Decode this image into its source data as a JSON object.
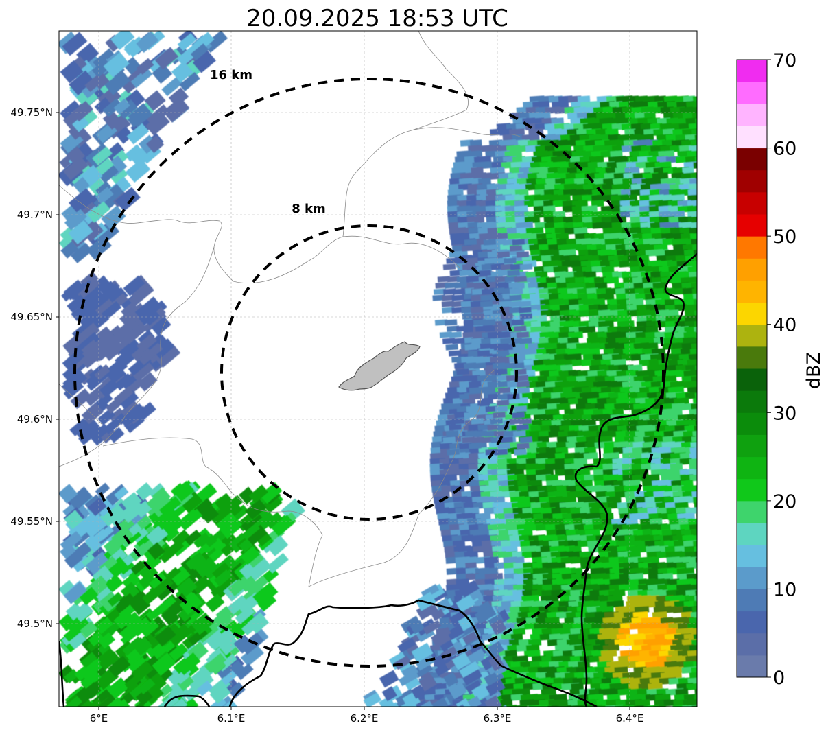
{
  "title": "20.09.2025 18:53 UTC",
  "map": {
    "x_ticks": [
      "6°E",
      "6.1°E",
      "6.2°E",
      "6.3°E",
      "6.4°E"
    ],
    "y_ticks": [
      "49.75°N",
      "49.7°N",
      "49.65°N",
      "49.6°N",
      "49.55°N",
      "49.5°N"
    ],
    "rings": [
      {
        "label": "8 km",
        "radius_km": 8
      },
      {
        "label": "16 km",
        "radius_km": 16
      }
    ],
    "center": {
      "lon": 6.2,
      "lat": 49.623
    }
  },
  "colorbar": {
    "label": "dBZ",
    "min": 0,
    "max": 70,
    "ticks": [
      "0",
      "10",
      "20",
      "30",
      "40",
      "50",
      "60",
      "70"
    ],
    "colors": [
      "#6a7bab",
      "#5b6ea8",
      "#4a66ad",
      "#4e7bb5",
      "#5b9bcb",
      "#66bfe0",
      "#5ed5c0",
      "#3ed46c",
      "#10c81a",
      "#0fb412",
      "#0fa10f",
      "#0b8c0b",
      "#0b7a0b",
      "#0a620a",
      "#4a7a0c",
      "#adb30f",
      "#fcd600",
      "#ffb400",
      "#ffa000",
      "#ff7800",
      "#e60000",
      "#c80000",
      "#a00000",
      "#7a0000",
      "#ffe0ff",
      "#ffb4ff",
      "#ff6cff",
      "#f02cf0"
    ]
  }
}
